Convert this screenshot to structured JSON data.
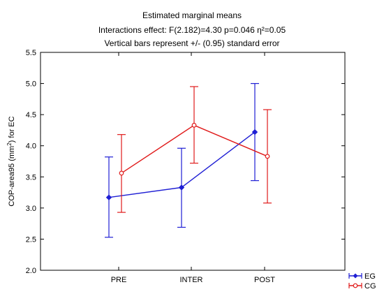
{
  "chart_data": {
    "type": "line",
    "title": "Estimated marginal means",
    "subtitle_lines": [
      "Interactions effect: F(2.182)=4.30 p=0.046 η²=0.05",
      "Vertical bars represent +/- (0.95) standard error"
    ],
    "xlabel": "",
    "ylabel_prefix": "COP-area95 (mm",
    "ylabel_sup": "2",
    "ylabel_suffix": ") for EC",
    "categories": [
      "PRE",
      "INTER",
      "POST"
    ],
    "ylim": [
      2.0,
      5.5
    ],
    "yticks": [
      "2.0",
      "2.5",
      "3.0",
      "3.5",
      "4.0",
      "4.5",
      "5.0",
      "5.5"
    ],
    "grid": false,
    "legend_position": "bottom-right",
    "series": [
      {
        "name": "EG",
        "color": "#1f1fd4",
        "marker": "diamond",
        "values": [
          3.17,
          3.33,
          4.22
        ],
        "lower": [
          2.53,
          2.69,
          3.44
        ],
        "upper": [
          3.82,
          3.96,
          5.0
        ]
      },
      {
        "name": "CG",
        "color": "#e01b1b",
        "marker": "square",
        "values": [
          3.56,
          4.33,
          3.83
        ],
        "lower": [
          2.93,
          3.72,
          3.08
        ],
        "upper": [
          4.18,
          4.95,
          4.58
        ]
      }
    ]
  }
}
